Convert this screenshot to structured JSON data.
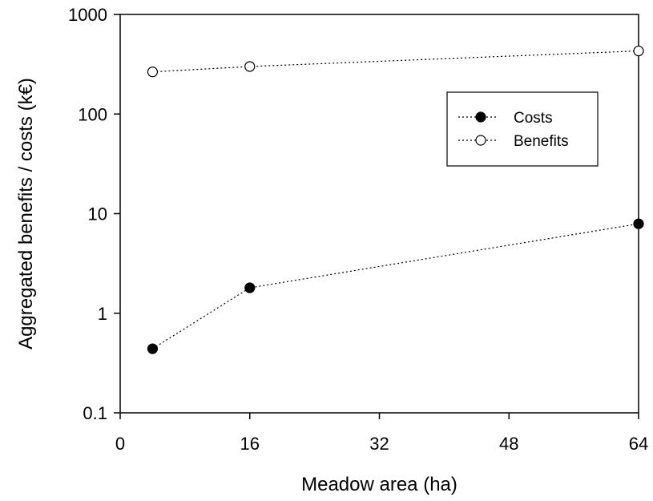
{
  "chart_data": {
    "type": "line",
    "xlabel": "Meadow area (ha)",
    "ylabel": "Aggregated benefits / costs (k€)",
    "x_ticks": [
      "0",
      "16",
      "32",
      "48",
      "64"
    ],
    "y_ticks": [
      "0.1",
      "1",
      "10",
      "100",
      "1000"
    ],
    "xlim": [
      0,
      64
    ],
    "ylim": [
      0.1,
      1000
    ],
    "yscale": "log",
    "grid": false,
    "legend_position": "upper-right",
    "series": [
      {
        "name": "Costs",
        "marker": "filled-circle",
        "line_style": "dotted",
        "x": [
          4,
          16,
          64
        ],
        "y": [
          0.44,
          1.8,
          7.9
        ]
      },
      {
        "name": "Benefits",
        "marker": "open-circle",
        "line_style": "dotted",
        "x": [
          4,
          16,
          64
        ],
        "y": [
          265,
          300,
          430
        ]
      }
    ]
  }
}
